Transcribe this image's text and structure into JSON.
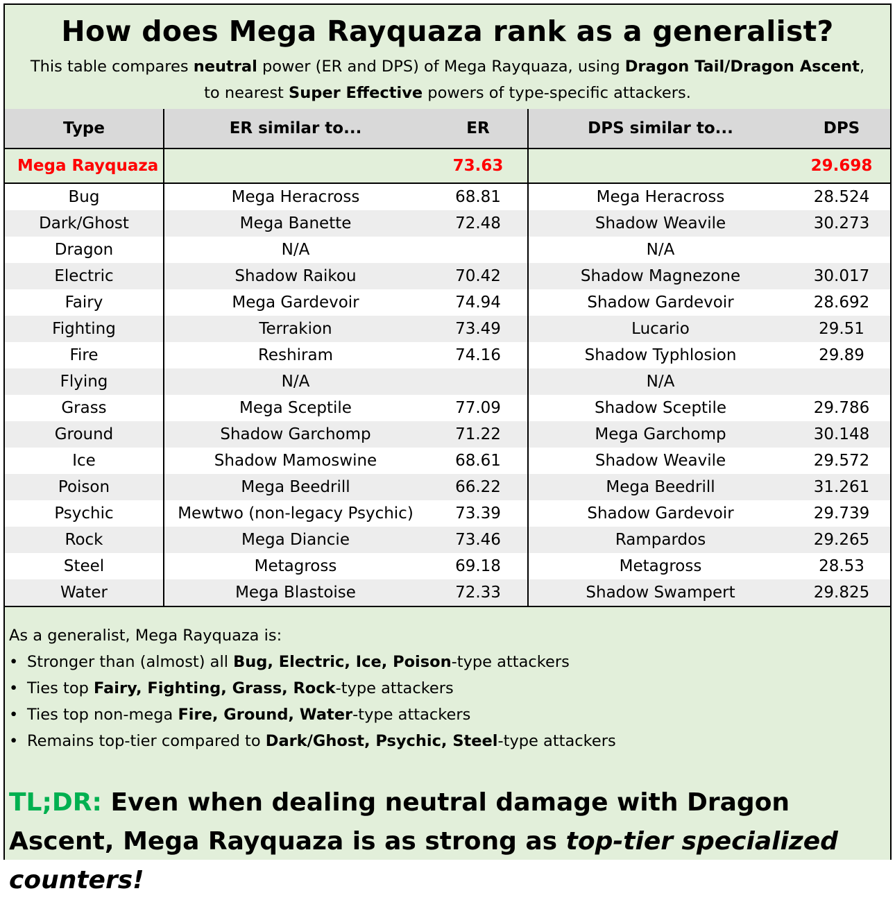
{
  "header": {
    "title": "How does Mega Rayquaza rank as a generalist?",
    "sub1_a": "This table compares ",
    "sub1_b": "neutral",
    "sub1_c": " power (ER and DPS) of Mega Rayquaza, using ",
    "sub1_d": "Dragon Tail/Dragon Ascent",
    "sub1_e": ",",
    "sub2_a": "to nearest ",
    "sub2_b": "Super Effective",
    "sub2_c": " powers of type-specific attackers."
  },
  "columns": {
    "type": "Type",
    "er_similar": "ER similar to...",
    "er": "ER",
    "dps_similar": "DPS similar to...",
    "dps": "DPS"
  },
  "mega_row": {
    "type": "Mega Rayquaza",
    "er_similar": "",
    "er": "73.63",
    "dps_similar": "",
    "dps": "29.698"
  },
  "rows": [
    {
      "type": "Bug",
      "er_similar": "Mega Heracross",
      "er": "68.81",
      "dps_similar": "Mega Heracross",
      "dps": "28.524"
    },
    {
      "type": "Dark/Ghost",
      "er_similar": "Mega Banette",
      "er": "72.48",
      "dps_similar": "Shadow Weavile",
      "dps": "30.273"
    },
    {
      "type": "Dragon",
      "er_similar": "N/A",
      "er": "",
      "dps_similar": "N/A",
      "dps": ""
    },
    {
      "type": "Electric",
      "er_similar": "Shadow Raikou",
      "er": "70.42",
      "dps_similar": "Shadow Magnezone",
      "dps": "30.017"
    },
    {
      "type": "Fairy",
      "er_similar": "Mega Gardevoir",
      "er": "74.94",
      "dps_similar": "Shadow Gardevoir",
      "dps": "28.692"
    },
    {
      "type": "Fighting",
      "er_similar": "Terrakion",
      "er": "73.49",
      "dps_similar": "Lucario",
      "dps": "29.51"
    },
    {
      "type": "Fire",
      "er_similar": "Reshiram",
      "er": "74.16",
      "dps_similar": "Shadow Typhlosion",
      "dps": "29.89"
    },
    {
      "type": "Flying",
      "er_similar": "N/A",
      "er": "",
      "dps_similar": "N/A",
      "dps": ""
    },
    {
      "type": "Grass",
      "er_similar": "Mega Sceptile",
      "er": "77.09",
      "dps_similar": "Shadow Sceptile",
      "dps": "29.786"
    },
    {
      "type": "Ground",
      "er_similar": "Shadow Garchomp",
      "er": "71.22",
      "dps_similar": "Mega Garchomp",
      "dps": "30.148"
    },
    {
      "type": "Ice",
      "er_similar": "Shadow Mamoswine",
      "er": "68.61",
      "dps_similar": "Shadow Weavile",
      "dps": "29.572"
    },
    {
      "type": "Poison",
      "er_similar": "Mega Beedrill",
      "er": "66.22",
      "dps_similar": "Mega Beedrill",
      "dps": "31.261"
    },
    {
      "type": "Psychic",
      "er_similar": "Mewtwo (non-legacy Psychic)",
      "er": "73.39",
      "dps_similar": "Shadow Gardevoir",
      "dps": "29.739"
    },
    {
      "type": "Rock",
      "er_similar": "Mega Diancie",
      "er": "73.46",
      "dps_similar": "Rampardos",
      "dps": "29.265"
    },
    {
      "type": "Steel",
      "er_similar": "Metagross",
      "er": "69.18",
      "dps_similar": "Metagross",
      "dps": "28.53"
    },
    {
      "type": "Water",
      "er_similar": "Mega Blastoise",
      "er": "72.33",
      "dps_similar": "Shadow Swampert",
      "dps": "29.825"
    }
  ],
  "summary": {
    "intro": "As a generalist, Mega Rayquaza is:",
    "bullet_symbol": "•",
    "b1_a": "Stronger than (almost) all ",
    "b1_b": "Bug, Electric, Ice, Poison",
    "b1_c": "-type attackers",
    "b2_a": "Ties top ",
    "b2_b": "Fairy, Fighting, Grass, Rock",
    "b2_c": "-type attackers",
    "b3_a": "Ties top non-mega ",
    "b3_b": "Fire, Ground, Water",
    "b3_c": "-type attackers",
    "b4_a": "Remains top-tier compared to ",
    "b4_b": "Dark/Ghost, Psychic, Steel",
    "b4_c": "-type attackers",
    "tldr_label": "TL;DR:",
    "tldr_a": " Even when dealing neutral damage with Dragon Ascent, Mega Rayquaza is as strong as ",
    "tldr_b": "top-tier specialized counters!"
  },
  "colors": {
    "header_bg": "#e2efda",
    "column_header_bg": "#d9d9d9",
    "highlight_red": "#ff0000",
    "row_shade": "#ededed",
    "tldr_green": "#00b050"
  }
}
